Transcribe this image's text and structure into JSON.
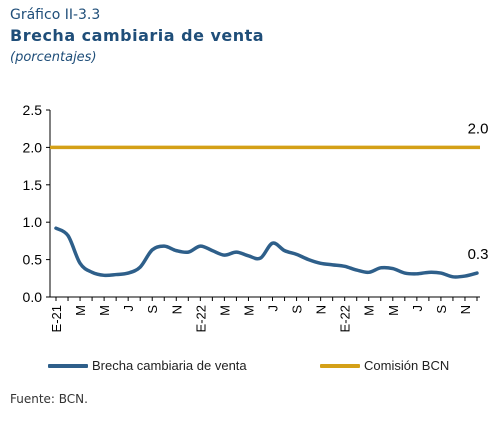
{
  "header": {
    "figure_number": "Gráfico II-3.3",
    "title": "Brecha cambiaria de venta",
    "subtitle": "(porcentajes)"
  },
  "source": "Fuente: BCN.",
  "colors": {
    "series1": "#2e5f8a",
    "series2": "#d4a017",
    "axis": "#000000"
  },
  "chart_data": {
    "type": "line",
    "ylim": [
      0,
      2.5
    ],
    "yticks": [
      "0.0",
      "0.5",
      "1.0",
      "1.5",
      "2.0",
      "2.5"
    ],
    "xticks": [
      "E-21",
      "M",
      "M",
      "J",
      "S",
      "N",
      "E-22",
      "M",
      "M",
      "J",
      "S",
      "N",
      "E-22",
      "M",
      "M",
      "J",
      "S",
      "N"
    ],
    "series": [
      {
        "name": "Brecha cambiaria de venta",
        "end_label": "0.3",
        "values": [
          0.92,
          0.82,
          0.45,
          0.33,
          0.29,
          0.3,
          0.32,
          0.4,
          0.63,
          0.68,
          0.62,
          0.6,
          0.68,
          0.62,
          0.56,
          0.6,
          0.55,
          0.52,
          0.72,
          0.62,
          0.57,
          0.5,
          0.45,
          0.43,
          0.41,
          0.36,
          0.33,
          0.39,
          0.38,
          0.32,
          0.31,
          0.33,
          0.32,
          0.27,
          0.28,
          0.32
        ]
      },
      {
        "name": "Comisión BCN",
        "end_label": "2.0",
        "values": [
          2.0,
          2.0
        ]
      }
    ]
  }
}
